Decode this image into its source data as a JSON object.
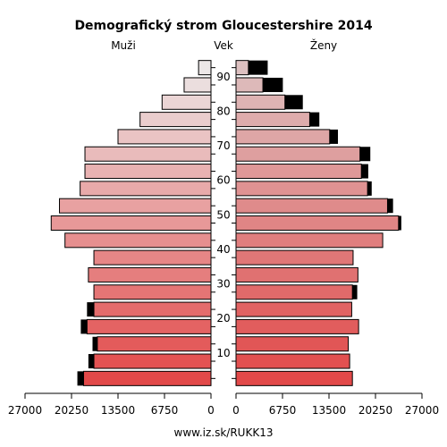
{
  "chart_data": {
    "type": "bar",
    "orientation": "horizontal-population-pyramid",
    "title": "Demografický strom Gloucestershire 2014",
    "left_label": "Muži",
    "center_label": "Vek",
    "right_label": "Ženy",
    "footer": "www.iz.sk/RUKK13",
    "x_range": [
      0,
      27000
    ],
    "x_ticks_left": [
      27000,
      20250,
      13500,
      6750,
      0
    ],
    "x_ticks_right": [
      0,
      6750,
      13500,
      20250,
      27000
    ],
    "age_ticks": [
      10,
      20,
      30,
      40,
      50,
      60,
      70,
      80,
      90
    ],
    "age_groups": [
      "0-4",
      "5-9",
      "10-14",
      "15-19",
      "20-24",
      "25-29",
      "30-34",
      "35-39",
      "40-44",
      "45-49",
      "50-54",
      "55-59",
      "60-64",
      "65-69",
      "70-74",
      "75-79",
      "80-84",
      "85-89",
      "90+"
    ],
    "males": [
      18500,
      17000,
      16500,
      18000,
      17000,
      17000,
      17800,
      17000,
      21200,
      23200,
      22000,
      19000,
      18300,
      18300,
      13500,
      10300,
      7100,
      3900,
      1800
    ],
    "males_excess": [
      900,
      800,
      700,
      900,
      1000,
      0,
      0,
      0,
      0,
      0,
      0,
      0,
      0,
      0,
      0,
      0,
      0,
      0,
      0
    ],
    "females": [
      16900,
      16500,
      16300,
      17800,
      16800,
      16900,
      17700,
      17000,
      21300,
      23600,
      22000,
      19100,
      18200,
      18000,
      13600,
      10700,
      7100,
      3900,
      1800
    ],
    "females_excess": [
      0,
      0,
      0,
      0,
      0,
      700,
      0,
      0,
      0,
      400,
      800,
      600,
      1000,
      1500,
      1200,
      1400,
      2600,
      2900,
      2800
    ],
    "colors": {
      "bottom": [
        226,
        73,
        73
      ],
      "top_male": [
        236,
        231,
        231
      ],
      "top_female": [
        221,
        192,
        192
      ],
      "excess": "#000000",
      "outline": "#000000"
    }
  }
}
